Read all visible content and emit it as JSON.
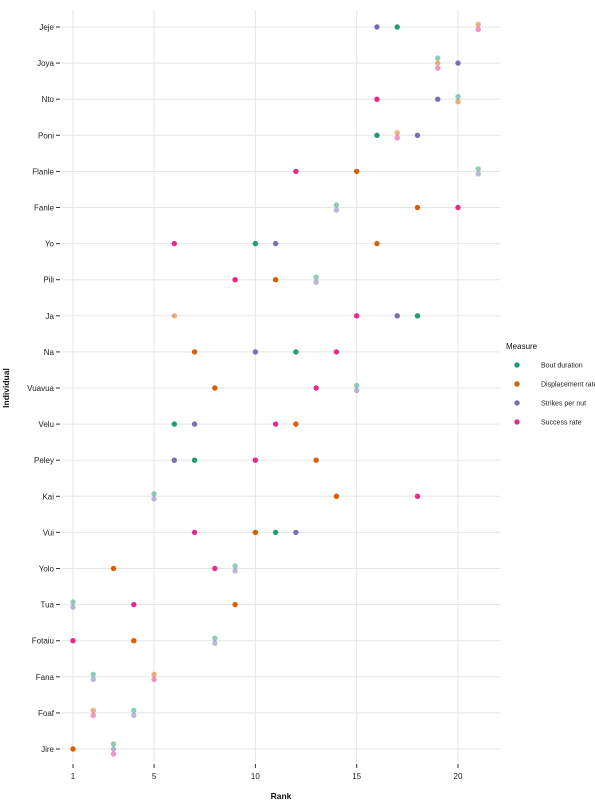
{
  "chart_data": {
    "type": "scatter",
    "title": "",
    "xlabel": "Rank",
    "ylabel": "Individual",
    "xlim": [
      0.4,
      22.0
    ],
    "x_ticks": [
      1,
      5,
      10,
      15,
      20
    ],
    "grid": true,
    "legend_position": "right",
    "legend_title": "Measure",
    "categories": [
      "Jeje",
      "Joya",
      "Nto",
      "Poni",
      "Flanle",
      "Fanle",
      "Yo",
      "Pili",
      "Ja",
      "Na",
      "Vuavua",
      "Velu",
      "Peley",
      "Kai",
      "Vui",
      "Yolo",
      "Tua",
      "Fotaiu",
      "Fana",
      "Foaf",
      "Jire"
    ],
    "series": [
      {
        "name": "Bout duration",
        "color": "#1b9e77",
        "points": [
          {
            "y": "Jeje",
            "x": 17,
            "alpha": 1
          },
          {
            "y": "Joya",
            "x": 19,
            "alpha": 0.5
          },
          {
            "y": "Nto",
            "x": 20,
            "alpha": 0.5
          },
          {
            "y": "Poni",
            "x": 16,
            "alpha": 1
          },
          {
            "y": "Flanle",
            "x": 21,
            "alpha": 0.5
          },
          {
            "y": "Fanle",
            "x": 14,
            "alpha": 0.5
          },
          {
            "y": "Yo",
            "x": 10,
            "alpha": 1
          },
          {
            "y": "Pili",
            "x": 13,
            "alpha": 0.5
          },
          {
            "y": "Ja",
            "x": 18,
            "alpha": 1
          },
          {
            "y": "Na",
            "x": 12,
            "alpha": 1
          },
          {
            "y": "Vuavua",
            "x": 15,
            "alpha": 0.5
          },
          {
            "y": "Velu",
            "x": 6,
            "alpha": 1
          },
          {
            "y": "Peley",
            "x": 7,
            "alpha": 1
          },
          {
            "y": "Kai",
            "x": 5,
            "alpha": 0.5
          },
          {
            "y": "Vui",
            "x": 11,
            "alpha": 1
          },
          {
            "y": "Yolo",
            "x": 9,
            "alpha": 0.5
          },
          {
            "y": "Tua",
            "x": 1,
            "alpha": 0.5
          },
          {
            "y": "Fotaiu",
            "x": 8,
            "alpha": 0.5
          },
          {
            "y": "Fana",
            "x": 2,
            "alpha": 0.5
          },
          {
            "y": "Foaf",
            "x": 4,
            "alpha": 0.5
          },
          {
            "y": "Jire",
            "x": 3,
            "alpha": 0.5
          }
        ]
      },
      {
        "name": "Displacement rate",
        "color": "#d95f02",
        "points": [
          {
            "y": "Jeje",
            "x": 21,
            "alpha": 0.5
          },
          {
            "y": "Joya",
            "x": 19,
            "alpha": 0.5
          },
          {
            "y": "Nto",
            "x": 20,
            "alpha": 0.5
          },
          {
            "y": "Poni",
            "x": 17,
            "alpha": 0.5
          },
          {
            "y": "Flanle",
            "x": 15,
            "alpha": 1
          },
          {
            "y": "Fanle",
            "x": 18,
            "alpha": 1
          },
          {
            "y": "Yo",
            "x": 16,
            "alpha": 1
          },
          {
            "y": "Pili",
            "x": 11,
            "alpha": 1
          },
          {
            "y": "Ja",
            "x": 6,
            "alpha": 0.5
          },
          {
            "y": "Na",
            "x": 7,
            "alpha": 1
          },
          {
            "y": "Vuavua",
            "x": 8,
            "alpha": 1
          },
          {
            "y": "Velu",
            "x": 12,
            "alpha": 1
          },
          {
            "y": "Peley",
            "x": 13,
            "alpha": 1
          },
          {
            "y": "Kai",
            "x": 14,
            "alpha": 1
          },
          {
            "y": "Vui",
            "x": 10,
            "alpha": 1
          },
          {
            "y": "Yolo",
            "x": 3,
            "alpha": 1
          },
          {
            "y": "Tua",
            "x": 9,
            "alpha": 1
          },
          {
            "y": "Fotaiu",
            "x": 4,
            "alpha": 1
          },
          {
            "y": "Fana",
            "x": 5,
            "alpha": 0.5
          },
          {
            "y": "Foaf",
            "x": 2,
            "alpha": 0.5
          },
          {
            "y": "Jire",
            "x": 1,
            "alpha": 1
          }
        ]
      },
      {
        "name": "Strikes per nut",
        "color": "#7570b3",
        "points": [
          {
            "y": "Jeje",
            "x": 16,
            "alpha": 1
          },
          {
            "y": "Joya",
            "x": 20,
            "alpha": 1
          },
          {
            "y": "Nto",
            "x": 19,
            "alpha": 1
          },
          {
            "y": "Poni",
            "x": 18,
            "alpha": 1
          },
          {
            "y": "Flanle",
            "x": 21,
            "alpha": 0.5
          },
          {
            "y": "Fanle",
            "x": 14,
            "alpha": 0.5
          },
          {
            "y": "Yo",
            "x": 11,
            "alpha": 1
          },
          {
            "y": "Pili",
            "x": 13,
            "alpha": 0.5
          },
          {
            "y": "Ja",
            "x": 17,
            "alpha": 1
          },
          {
            "y": "Na",
            "x": 10,
            "alpha": 1
          },
          {
            "y": "Vuavua",
            "x": 15,
            "alpha": 0.5
          },
          {
            "y": "Velu",
            "x": 7,
            "alpha": 1
          },
          {
            "y": "Peley",
            "x": 6,
            "alpha": 1
          },
          {
            "y": "Kai",
            "x": 5,
            "alpha": 0.5
          },
          {
            "y": "Vui",
            "x": 12,
            "alpha": 1
          },
          {
            "y": "Yolo",
            "x": 9,
            "alpha": 0.5
          },
          {
            "y": "Tua",
            "x": 1,
            "alpha": 0.5
          },
          {
            "y": "Fotaiu",
            "x": 8,
            "alpha": 0.5
          },
          {
            "y": "Fana",
            "x": 2,
            "alpha": 0.5
          },
          {
            "y": "Foaf",
            "x": 4,
            "alpha": 0.5
          },
          {
            "y": "Jire",
            "x": 3,
            "alpha": 0.5
          }
        ]
      },
      {
        "name": "Success rate",
        "color": "#e7298a",
        "points": [
          {
            "y": "Jeje",
            "x": 21,
            "alpha": 0.5
          },
          {
            "y": "Joya",
            "x": 19,
            "alpha": 0.5
          },
          {
            "y": "Nto",
            "x": 16,
            "alpha": 1
          },
          {
            "y": "Poni",
            "x": 17,
            "alpha": 0.5
          },
          {
            "y": "Flanle",
            "x": 12,
            "alpha": 1
          },
          {
            "y": "Fanle",
            "x": 20,
            "alpha": 1
          },
          {
            "y": "Yo",
            "x": 6,
            "alpha": 1
          },
          {
            "y": "Pili",
            "x": 9,
            "alpha": 1
          },
          {
            "y": "Ja",
            "x": 15,
            "alpha": 1
          },
          {
            "y": "Na",
            "x": 14,
            "alpha": 1
          },
          {
            "y": "Vuavua",
            "x": 13,
            "alpha": 1
          },
          {
            "y": "Velu",
            "x": 11,
            "alpha": 1
          },
          {
            "y": "Peley",
            "x": 10,
            "alpha": 1
          },
          {
            "y": "Kai",
            "x": 18,
            "alpha": 1
          },
          {
            "y": "Vui",
            "x": 7,
            "alpha": 1
          },
          {
            "y": "Yolo",
            "x": 8,
            "alpha": 1
          },
          {
            "y": "Tua",
            "x": 4,
            "alpha": 1
          },
          {
            "y": "Fotaiu",
            "x": 1,
            "alpha": 1
          },
          {
            "y": "Fana",
            "x": 5,
            "alpha": 0.5
          },
          {
            "y": "Foaf",
            "x": 2,
            "alpha": 0.5
          },
          {
            "y": "Jire",
            "x": 3,
            "alpha": 0.5
          }
        ]
      }
    ]
  }
}
